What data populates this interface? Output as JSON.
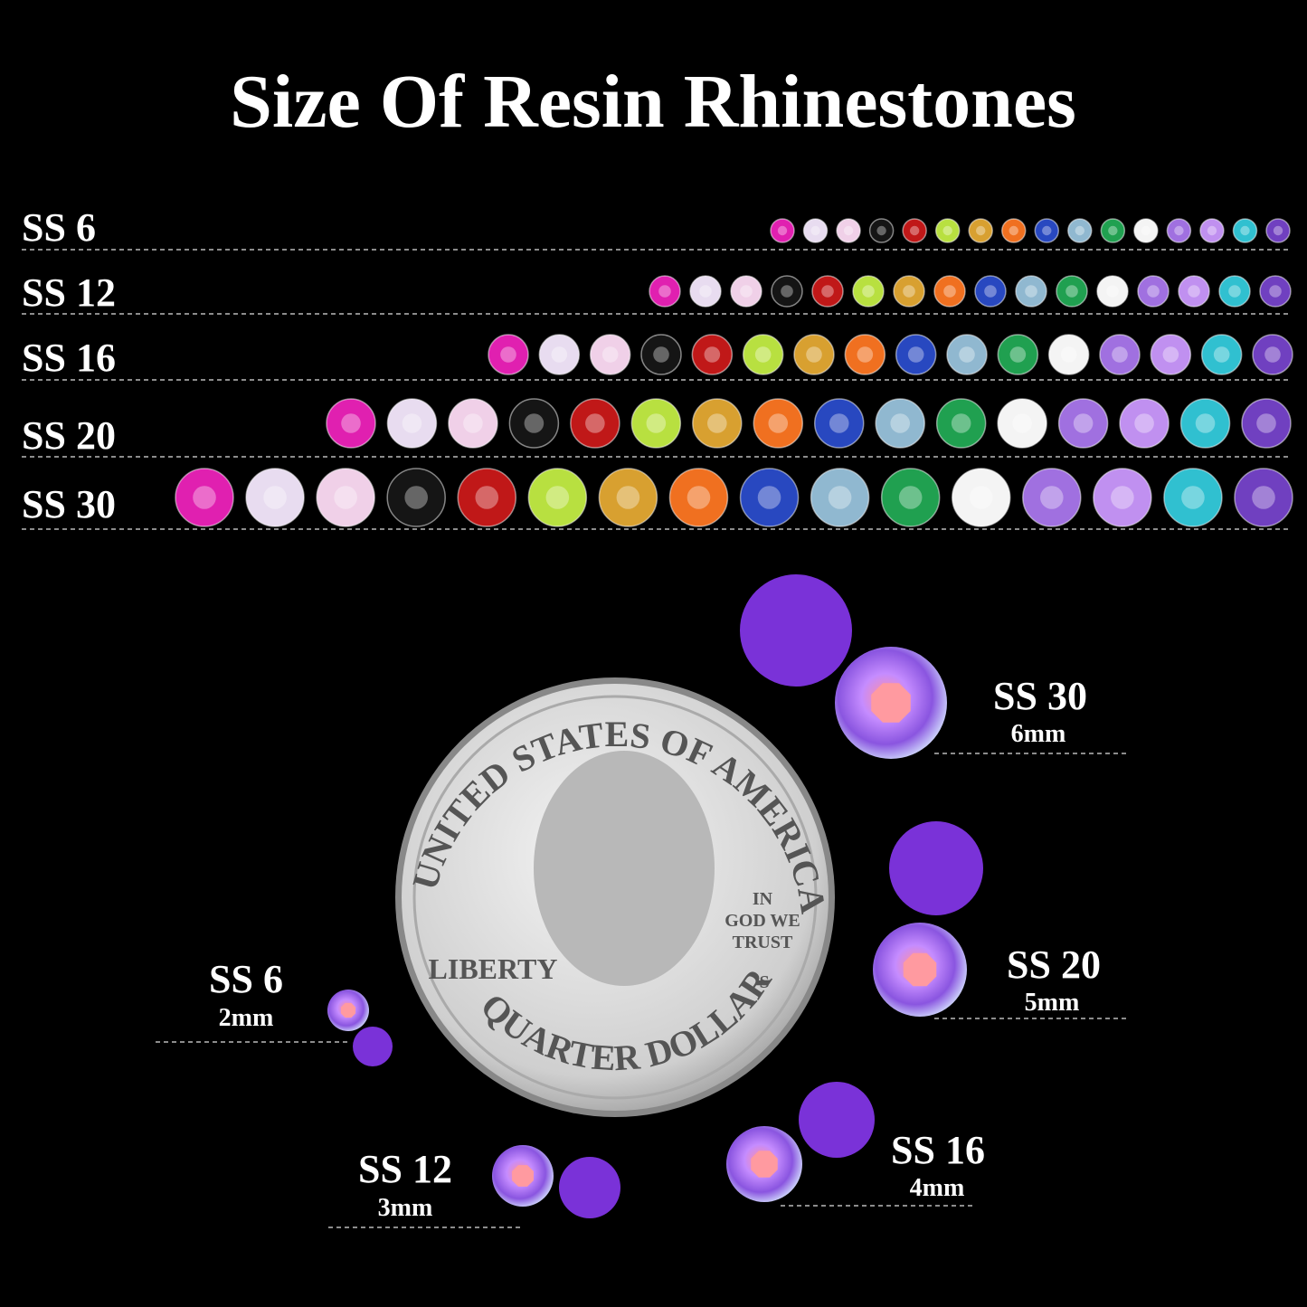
{
  "title": "Size Of Resin Rhinestones",
  "rows": [
    {
      "label": "SS 6"
    },
    {
      "label": "SS 12"
    },
    {
      "label": "SS 16"
    },
    {
      "label": "SS 20"
    },
    {
      "label": "SS 30"
    }
  ],
  "callouts": [
    {
      "size": "SS 30",
      "mm": "6mm"
    },
    {
      "size": "SS 20",
      "mm": "5mm"
    },
    {
      "size": "SS 16",
      "mm": "4mm"
    },
    {
      "size": "SS 12",
      "mm": "3mm"
    },
    {
      "size": "SS 6",
      "mm": "2mm"
    }
  ],
  "coin": {
    "top": "UNITED STATES OF AMERICA",
    "motto": [
      "IN",
      "GOD WE",
      "TRUST"
    ],
    "left": "LIBERTY",
    "bottom": "QUARTER DOLLAR",
    "mint": "S"
  }
}
